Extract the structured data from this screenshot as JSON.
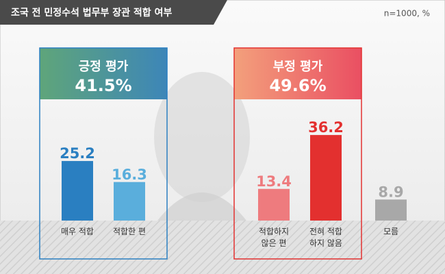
{
  "chart_data": {
    "type": "bar",
    "title": "조국 전 민정수석 법무부 장관 적합 여부",
    "note": "n=1000, %",
    "groups": [
      {
        "label": "긍정 평가",
        "total": "41.5%"
      },
      {
        "label": "부정 평가",
        "total": "49.6%"
      }
    ],
    "categories": [
      "매우 적합",
      "적합한 편",
      "적합하지\n않은 편",
      "전혀 적합\n하지 않음",
      "모름"
    ],
    "values": [
      25.2,
      16.3,
      13.4,
      36.2,
      8.9
    ],
    "colors": [
      "#2a7fc1",
      "#5aaedc",
      "#ee7b7e",
      "#e3302f",
      "#a8a8a8"
    ],
    "ylim": [
      0,
      40
    ]
  }
}
